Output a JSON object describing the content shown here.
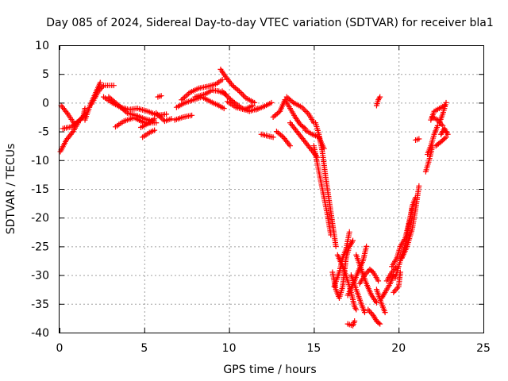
{
  "chart_data": {
    "type": "scatter",
    "title": "Day 085 of 2024, Sidereal Day-to-day VTEC variation (SDTVAR) for receiver bla1",
    "xlabel": "GPS time / hours",
    "ylabel": "SDTVAR / TECUs",
    "xlim": [
      0,
      25
    ],
    "ylim": [
      -40,
      10
    ],
    "xticks": [
      0,
      5,
      10,
      15,
      20,
      25
    ],
    "yticks": [
      10,
      5,
      0,
      -5,
      -10,
      -15,
      -20,
      -25,
      -30,
      -35,
      -40
    ],
    "grid": true,
    "legend": "none",
    "marker": "plus",
    "series": [
      {
        "name": "SDTVAR",
        "color": "#ff0000",
        "tracks": [
          [
            [
              0.05,
              -8.5
            ],
            [
              0.4,
              -6.5
            ],
            [
              0.8,
              -5.0
            ],
            [
              1.1,
              -3.5
            ]
          ],
          [
            [
              0.1,
              -0.5
            ],
            [
              0.5,
              -2.0
            ],
            [
              0.9,
              -3.8
            ],
            [
              1.4,
              -2.5
            ],
            [
              1.5,
              -1.0
            ]
          ],
          [
            [
              0.2,
              -4.5
            ],
            [
              0.7,
              -4.2
            ],
            [
              1.2,
              -3.0
            ],
            [
              1.5,
              -2.0
            ]
          ],
          [
            [
              1.5,
              -3.0
            ],
            [
              1.8,
              -0.5
            ],
            [
              2.1,
              1.5
            ],
            [
              2.4,
              3.5
            ]
          ],
          [
            [
              1.9,
              -0.2
            ],
            [
              2.3,
              2.0
            ],
            [
              2.6,
              3.0
            ],
            [
              3.2,
              3.0
            ]
          ],
          [
            [
              2.6,
              1.0
            ],
            [
              3.1,
              0.0
            ],
            [
              3.6,
              -0.8
            ],
            [
              4.1,
              -1.2
            ],
            [
              4.6,
              -1.0
            ],
            [
              5.2,
              -1.5
            ],
            [
              5.8,
              -2.2
            ],
            [
              6.3,
              -2.0
            ]
          ],
          [
            [
              2.9,
              1.0
            ],
            [
              3.5,
              -0.5
            ],
            [
              4.0,
              -1.8
            ],
            [
              4.6,
              -2.3
            ],
            [
              5.0,
              -2.8
            ],
            [
              5.5,
              -3.2
            ]
          ],
          [
            [
              3.3,
              -4.2
            ],
            [
              3.8,
              -3.2
            ],
            [
              4.4,
              -2.6
            ],
            [
              5.0,
              -3.5
            ],
            [
              5.7,
              -3.5
            ]
          ],
          [
            [
              4.8,
              -4.3
            ],
            [
              5.3,
              -3.5
            ],
            [
              5.6,
              -2.8
            ]
          ],
          [
            [
              4.9,
              -6.0
            ],
            [
              5.3,
              -5.2
            ],
            [
              5.6,
              -4.8
            ]
          ],
          [
            [
              5.7,
              -1.8
            ],
            [
              6.2,
              -3.2
            ],
            [
              6.6,
              -2.8
            ]
          ],
          [
            [
              5.8,
              1.0
            ],
            [
              6.0,
              1.2
            ]
          ],
          [
            [
              6.8,
              -3.0
            ],
            [
              7.3,
              -2.5
            ],
            [
              7.8,
              -2.2
            ]
          ],
          [
            [
              6.9,
              -0.8
            ],
            [
              7.4,
              0.0
            ],
            [
              7.9,
              0.5
            ],
            [
              8.4,
              1.0
            ],
            [
              8.9,
              0.2
            ],
            [
              9.4,
              -0.5
            ],
            [
              9.7,
              -1.0
            ]
          ],
          [
            [
              7.2,
              0.5
            ],
            [
              7.7,
              1.8
            ],
            [
              8.2,
              2.5
            ],
            [
              8.7,
              2.8
            ],
            [
              9.2,
              3.2
            ],
            [
              9.6,
              4.0
            ]
          ],
          [
            [
              8.0,
              1.0
            ],
            [
              8.6,
              1.5
            ],
            [
              9.0,
              2.2
            ],
            [
              9.4,
              2.0
            ],
            [
              9.8,
              1.5
            ]
          ],
          [
            [
              9.5,
              5.8
            ],
            [
              9.8,
              4.5
            ],
            [
              10.2,
              3.0
            ],
            [
              10.6,
              2.0
            ],
            [
              11.0,
              0.8
            ],
            [
              11.5,
              0.0
            ]
          ],
          [
            [
              9.6,
              2.0
            ],
            [
              10.0,
              0.8
            ],
            [
              10.4,
              -0.2
            ],
            [
              10.8,
              -1.0
            ],
            [
              11.2,
              -1.5
            ],
            [
              11.7,
              -1.0
            ]
          ],
          [
            [
              9.9,
              0.2
            ],
            [
              10.4,
              -0.8
            ],
            [
              10.9,
              -1.2
            ],
            [
              11.4,
              -0.5
            ]
          ],
          [
            [
              11.6,
              -1.2
            ],
            [
              12.1,
              -0.6
            ],
            [
              12.5,
              0.0
            ]
          ],
          [
            [
              11.9,
              -5.5
            ],
            [
              12.3,
              -5.8
            ],
            [
              12.6,
              -6.0
            ]
          ],
          [
            [
              12.6,
              -2.5
            ],
            [
              13.0,
              -1.5
            ],
            [
              13.3,
              0.5
            ]
          ],
          [
            [
              12.8,
              -5.0
            ],
            [
              13.2,
              -6.0
            ],
            [
              13.6,
              -7.5
            ]
          ],
          [
            [
              13.3,
              0.5
            ],
            [
              13.6,
              -1.0
            ],
            [
              13.9,
              -2.5
            ],
            [
              14.2,
              -3.8
            ],
            [
              14.5,
              -4.5
            ]
          ],
          [
            [
              13.4,
              1.0
            ],
            [
              13.8,
              0.0
            ],
            [
              14.3,
              -0.8
            ],
            [
              14.7,
              -2.0
            ],
            [
              15.0,
              -3.5
            ]
          ],
          [
            [
              13.6,
              -3.5
            ],
            [
              14.0,
              -5.0
            ],
            [
              14.4,
              -6.5
            ],
            [
              14.8,
              -8.0
            ],
            [
              15.2,
              -9.5
            ]
          ],
          [
            [
              14.5,
              -4.8
            ],
            [
              14.9,
              -5.5
            ],
            [
              15.3,
              -6.0
            ],
            [
              15.6,
              -8.0
            ]
          ],
          [
            [
              15.1,
              -3.5
            ],
            [
              15.3,
              -5.5
            ],
            [
              15.5,
              -8.5
            ],
            [
              15.7,
              -13.0
            ],
            [
              15.9,
              -17.0
            ],
            [
              16.1,
              -21.0
            ],
            [
              16.3,
              -25.0
            ]
          ],
          [
            [
              15.0,
              -7.5
            ],
            [
              15.2,
              -10.5
            ],
            [
              15.5,
              -15.0
            ],
            [
              15.8,
              -19.5
            ],
            [
              16.0,
              -23.0
            ]
          ],
          [
            [
              16.1,
              -29.5
            ],
            [
              16.3,
              -32.5
            ],
            [
              16.5,
              -34.0
            ],
            [
              16.7,
              -32.0
            ],
            [
              16.8,
              -29.5
            ],
            [
              16.9,
              -27.0
            ],
            [
              17.1,
              -25.0
            ],
            [
              17.3,
              -24.0
            ]
          ],
          [
            [
              16.2,
              -32.0
            ],
            [
              16.5,
              -29.5
            ],
            [
              16.7,
              -27.0
            ],
            [
              16.9,
              -25.5
            ],
            [
              17.1,
              -22.5
            ]
          ],
          [
            [
              16.4,
              -26.5
            ],
            [
              16.7,
              -28.5
            ],
            [
              17.0,
              -31.0
            ],
            [
              17.2,
              -33.0
            ],
            [
              17.4,
              -35.5
            ],
            [
              17.5,
              -36.0
            ]
          ],
          [
            [
              17.0,
              -33.5
            ],
            [
              17.4,
              -31.0
            ],
            [
              17.6,
              -29.5
            ],
            [
              17.9,
              -27.5
            ],
            [
              18.1,
              -25.0
            ]
          ],
          [
            [
              17.2,
              -30.0
            ],
            [
              17.5,
              -32.5
            ],
            [
              17.8,
              -35.0
            ],
            [
              18.0,
              -36.5
            ]
          ],
          [
            [
              17.5,
              -26.5
            ],
            [
              17.8,
              -29.0
            ],
            [
              18.1,
              -31.5
            ],
            [
              18.4,
              -33.5
            ],
            [
              18.7,
              -34.8
            ]
          ],
          [
            [
              17.7,
              -31.5
            ],
            [
              18.0,
              -30.0
            ],
            [
              18.3,
              -29.0
            ],
            [
              18.5,
              -29.5
            ],
            [
              18.8,
              -31.0
            ]
          ],
          [
            [
              17.0,
              -38.5
            ],
            [
              17.3,
              -38.8
            ],
            [
              17.4,
              -38.0
            ]
          ],
          [
            [
              18.2,
              -36.0
            ],
            [
              18.5,
              -37.0
            ],
            [
              18.7,
              -38.0
            ],
            [
              18.9,
              -38.5
            ]
          ],
          [
            [
              18.7,
              -32.5
            ],
            [
              19.0,
              -35.0
            ],
            [
              19.2,
              -36.5
            ]
          ],
          [
            [
              18.7,
              -0.5
            ],
            [
              18.8,
              0.5
            ],
            [
              18.9,
              1.0
            ]
          ],
          [
            [
              19.0,
              -34.0
            ],
            [
              19.2,
              -33.0
            ],
            [
              19.5,
              -31.5
            ],
            [
              19.7,
              -30.0
            ]
          ],
          [
            [
              19.3,
              -31.0
            ],
            [
              19.6,
              -29.5
            ],
            [
              19.9,
              -28.5
            ]
          ],
          [
            [
              19.6,
              -28.5
            ],
            [
              19.9,
              -27.0
            ],
            [
              20.1,
              -25.0
            ],
            [
              20.4,
              -23.5
            ],
            [
              20.6,
              -21.0
            ],
            [
              20.8,
              -18.5
            ]
          ],
          [
            [
              19.8,
              -30.5
            ],
            [
              20.1,
              -27.5
            ],
            [
              20.4,
              -24.5
            ],
            [
              20.6,
              -21.5
            ],
            [
              20.8,
              -18.0
            ],
            [
              21.0,
              -16.5
            ]
          ],
          [
            [
              19.7,
              -33.0
            ],
            [
              20.0,
              -32.0
            ],
            [
              20.1,
              -29.5
            ]
          ],
          [
            [
              20.2,
              -27.0
            ],
            [
              20.5,
              -25.0
            ],
            [
              20.8,
              -22.0
            ],
            [
              21.0,
              -18.5
            ],
            [
              21.2,
              -14.5
            ]
          ],
          [
            [
              21.6,
              -12.0
            ],
            [
              21.8,
              -10.0
            ],
            [
              22.0,
              -7.5
            ]
          ],
          [
            [
              21.7,
              -9.0
            ],
            [
              21.9,
              -7.5
            ],
            [
              22.1,
              -5.5
            ],
            [
              22.3,
              -4.0
            ]
          ],
          [
            [
              21.9,
              -3.0
            ],
            [
              22.1,
              -1.5
            ],
            [
              22.4,
              -1.0
            ],
            [
              22.7,
              -0.5
            ]
          ],
          [
            [
              22.2,
              -7.5
            ],
            [
              22.5,
              -6.8
            ],
            [
              22.8,
              -6.0
            ]
          ],
          [
            [
              22.4,
              -3.5
            ],
            [
              22.6,
              -2.0
            ],
            [
              22.8,
              0.0
            ]
          ],
          [
            [
              22.5,
              -5.5
            ],
            [
              22.7,
              -4.5
            ],
            [
              22.9,
              -5.5
            ]
          ],
          [
            [
              22.0,
              -2.5
            ],
            [
              22.3,
              -3.0
            ],
            [
              22.6,
              -4.0
            ]
          ],
          [
            [
              21.0,
              -6.5
            ],
            [
              21.2,
              -6.3
            ]
          ]
        ]
      }
    ]
  }
}
